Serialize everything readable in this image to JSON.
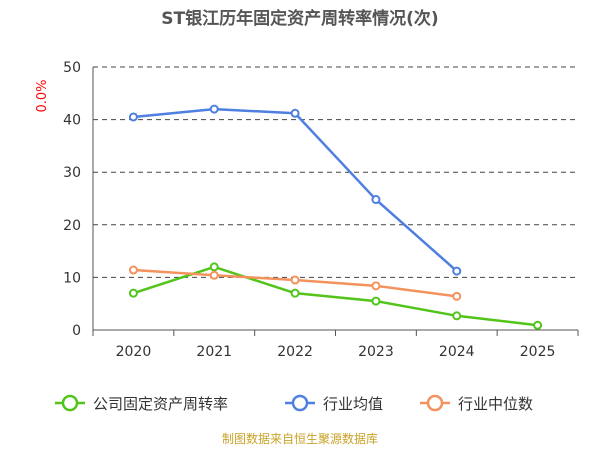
{
  "chart_data": {
    "type": "line",
    "title": "ST银江历年固定资产周转率情况(次)",
    "unit_label": "0.0%",
    "source": "制图数据来自恒生聚源数据库",
    "x": [
      "2020",
      "2021",
      "2022",
      "2023",
      "2024",
      "2025"
    ],
    "ylim": [
      0,
      50
    ],
    "yticks": [
      0,
      10,
      20,
      30,
      40,
      50
    ],
    "grid": true,
    "legend_position": "bottom",
    "series": [
      {
        "name": "公司固定资产周转率",
        "color": "#52c41a",
        "values": [
          7.0,
          12.0,
          7.0,
          5.5,
          2.7,
          0.9
        ]
      },
      {
        "name": "行业均值",
        "color": "#4f7fe0",
        "values": [
          40.5,
          42.0,
          41.2,
          24.8,
          11.2,
          null
        ]
      },
      {
        "name": "行业中位数",
        "color": "#f4925e",
        "values": [
          11.4,
          10.4,
          9.5,
          8.4,
          6.4,
          null
        ]
      }
    ]
  }
}
